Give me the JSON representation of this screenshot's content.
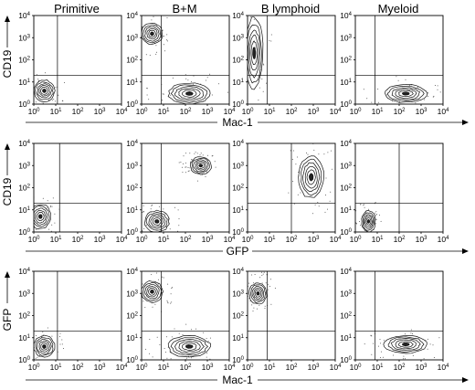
{
  "columns": [
    "Primitive",
    "B+M",
    "B lymphoid",
    "Myeloid"
  ],
  "rows": [
    {
      "ylabel": "CD19",
      "xlabel": "Mac-1"
    },
    {
      "ylabel": "CD19",
      "xlabel": "GFP"
    },
    {
      "ylabel": "GFP",
      "xlabel": "Mac-1"
    }
  ],
  "tick_labels": [
    {
      "base": "10",
      "exp": "0"
    },
    {
      "base": "10",
      "exp": "1"
    },
    {
      "base": "10",
      "exp": "2"
    },
    {
      "base": "10",
      "exp": "3"
    },
    {
      "base": "10",
      "exp": "4"
    }
  ],
  "chart_data": {
    "type": "scatter",
    "subtype": "flow-cytometry-contour-grid",
    "xscale": "log",
    "yscale": "log",
    "xlim": [
      1,
      10000
    ],
    "ylim": [
      1,
      10000
    ],
    "grid": [
      [
        {
          "column": "Primitive",
          "x_gate": 12,
          "y_gate": 20,
          "populations": [
            {
              "x": 3,
              "y": 4,
              "sx": 0.3,
              "sy": 0.3,
              "w": 1
            }
          ]
        },
        {
          "column": "B+M",
          "x_gate": 8,
          "y_gate": 20,
          "populations": [
            {
              "x": 3,
              "y": 1500,
              "sx": 0.3,
              "sy": 0.3,
              "w": 1
            },
            {
              "x": 150,
              "y": 3,
              "sx": 0.6,
              "sy": 0.3,
              "w": 1.1
            }
          ]
        },
        {
          "column": "B lymphoid",
          "x_gate": 8,
          "y_gate": 20,
          "populations": [
            {
              "x": 2,
              "y": 200,
              "sx": 0.25,
              "sy": 1.0,
              "w": 1
            }
          ]
        },
        {
          "column": "Myeloid",
          "x_gate": 8,
          "y_gate": 20,
          "populations": [
            {
              "x": 200,
              "y": 3,
              "sx": 0.6,
              "sy": 0.25,
              "w": 1
            }
          ]
        }
      ],
      [
        {
          "column": "Primitive",
          "x_gate": 15,
          "y_gate": 20,
          "populations": [
            {
              "x": 2,
              "y": 5,
              "sx": 0.3,
              "sy": 0.35,
              "w": 1
            }
          ]
        },
        {
          "column": "B+M",
          "x_gate": 8,
          "y_gate": 20,
          "populations": [
            {
              "x": 500,
              "y": 1000,
              "sx": 0.3,
              "sy": 0.25,
              "w": 1
            },
            {
              "x": 5,
              "y": 3,
              "sx": 0.35,
              "sy": 0.3,
              "w": 1
            }
          ]
        },
        {
          "column": "B lymphoid",
          "x_gate": 100,
          "y_gate": 20,
          "populations": [
            {
              "x": 800,
              "y": 300,
              "sx": 0.35,
              "sy": 0.6,
              "w": 1
            }
          ]
        },
        {
          "column": "Myeloid",
          "x_gate": 100,
          "y_gate": 20,
          "populations": [
            {
              "x": 4,
              "y": 3,
              "sx": 0.2,
              "sy": 0.3,
              "w": 1
            }
          ]
        }
      ],
      [
        {
          "column": "Primitive",
          "x_gate": 12,
          "y_gate": 20,
          "populations": [
            {
              "x": 3,
              "y": 4,
              "sx": 0.3,
              "sy": 0.3,
              "w": 1
            }
          ]
        },
        {
          "column": "B+M",
          "x_gate": 8,
          "y_gate": 20,
          "populations": [
            {
              "x": 3,
              "y": 1200,
              "sx": 0.3,
              "sy": 0.3,
              "w": 1
            },
            {
              "x": 150,
              "y": 4,
              "sx": 0.6,
              "sy": 0.3,
              "w": 1.1
            }
          ]
        },
        {
          "column": "B lymphoid",
          "x_gate": 8,
          "y_gate": 20,
          "populations": [
            {
              "x": 3,
              "y": 1000,
              "sx": 0.25,
              "sy": 0.3,
              "w": 1
            }
          ]
        },
        {
          "column": "Myeloid",
          "x_gate": 8,
          "y_gate": 20,
          "populations": [
            {
              "x": 200,
              "y": 5,
              "sx": 0.6,
              "sy": 0.25,
              "w": 1
            }
          ]
        }
      ]
    ]
  }
}
